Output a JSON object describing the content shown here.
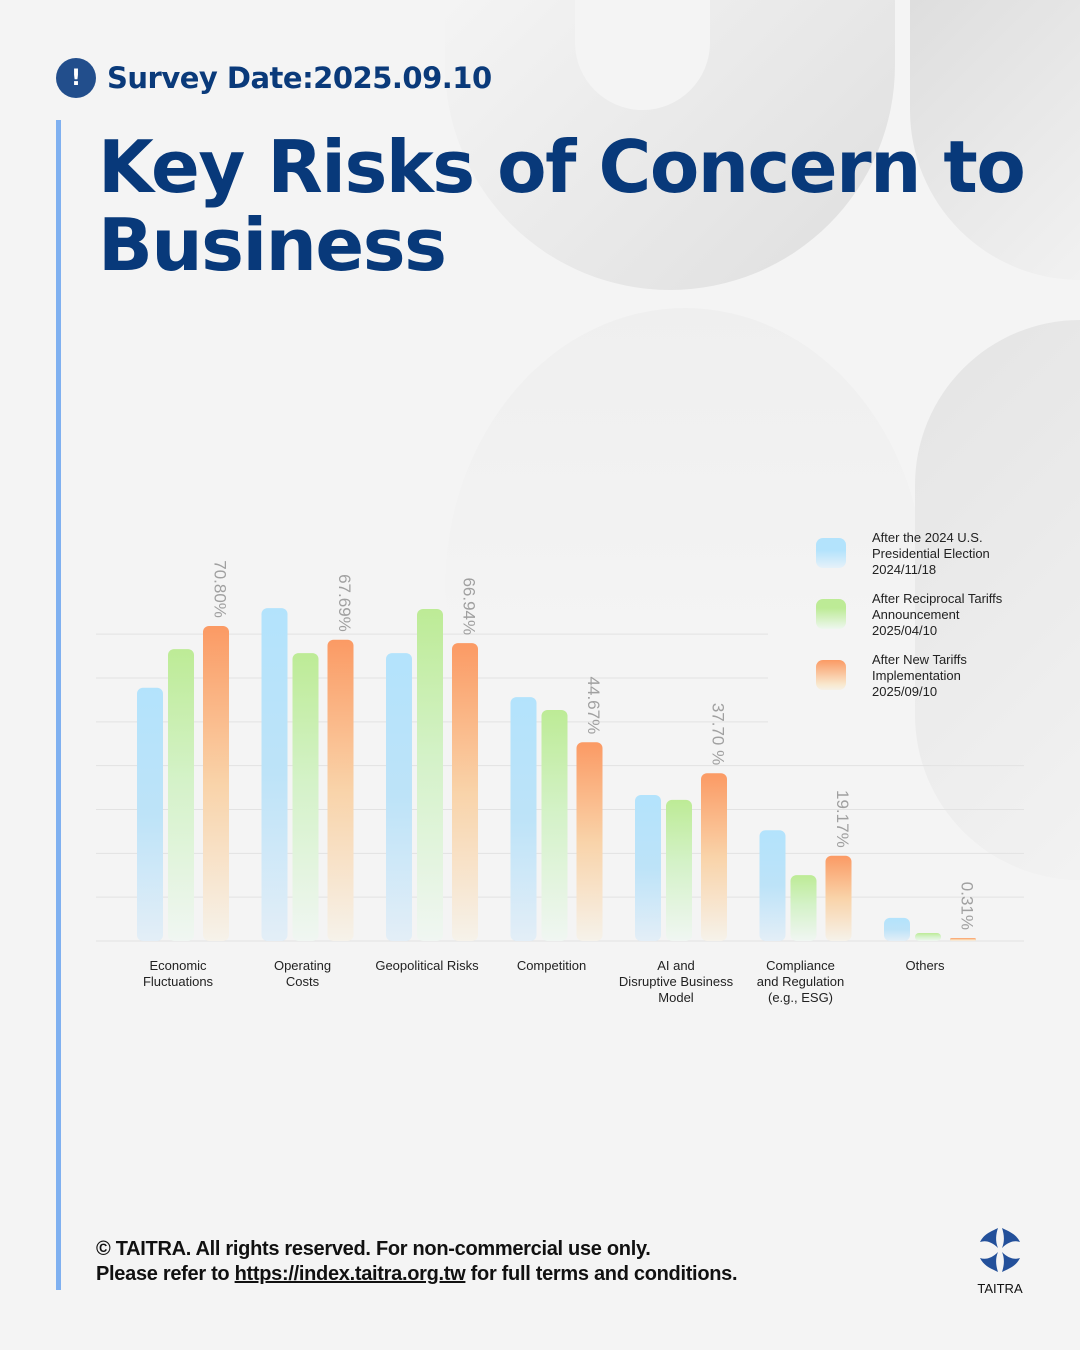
{
  "header": {
    "survey_date": "Survey Date:2025.09.10",
    "alert_icon_glyph": "!",
    "title": "Key Risks of Concern to Business"
  },
  "colors": {
    "title": "#08397a",
    "accent_bar": "#7fb0f0",
    "series_blue": "#b3e3fc",
    "series_green": "#bdeb96",
    "series_orange": "#fb9a64",
    "value_label": "#a0a0a0"
  },
  "chart_data": {
    "type": "bar",
    "title": "Key Risks of Concern to Business",
    "xlabel": "",
    "ylabel": "",
    "ylim": [
      0,
      80
    ],
    "grid": true,
    "legend_position": "top-right",
    "categories": [
      "Economic\nFluctuations",
      "Operating\nCosts",
      "Geopolitical Risks",
      "Competition",
      "AI and\nDisruptive Business\nModel",
      "Compliance\nand Regulation\n(e.g., ESG)",
      "Others"
    ],
    "series": [
      {
        "name": "After the 2024 U.S.\nPresidential Election\n2024/11/18",
        "color": "#b3e3fc",
        "values": [
          56.9,
          74.8,
          64.7,
          54.8,
          32.8,
          24.9,
          5.2
        ],
        "labeled": false
      },
      {
        "name": "After Reciprocal Tariffs\nAnnouncement\n2025/04/10",
        "color": "#bdeb96",
        "values": [
          65.6,
          64.7,
          74.6,
          51.9,
          31.7,
          14.8,
          1.8
        ],
        "labeled": false
      },
      {
        "name": "After New Tariffs\nImplementation\n 2025/09/10",
        "color": "#fb9a64",
        "values": [
          70.8,
          67.69,
          66.94,
          44.67,
          37.7,
          19.17,
          0.31
        ],
        "labeled": true,
        "value_labels": [
          "70.80%",
          "67.69%",
          "66.94%",
          "44.67%",
          "37.70 %",
          "19.17%",
          "0.31%"
        ]
      }
    ]
  },
  "footer": {
    "line1": "© TAITRA. All rights reserved. For non-commercial use only.",
    "line2_prefix": "Please refer to ",
    "link": "https://index.taitra.org.tw",
    "line2_suffix": " for full terms and conditions.",
    "logo_text": "TAITRA"
  }
}
